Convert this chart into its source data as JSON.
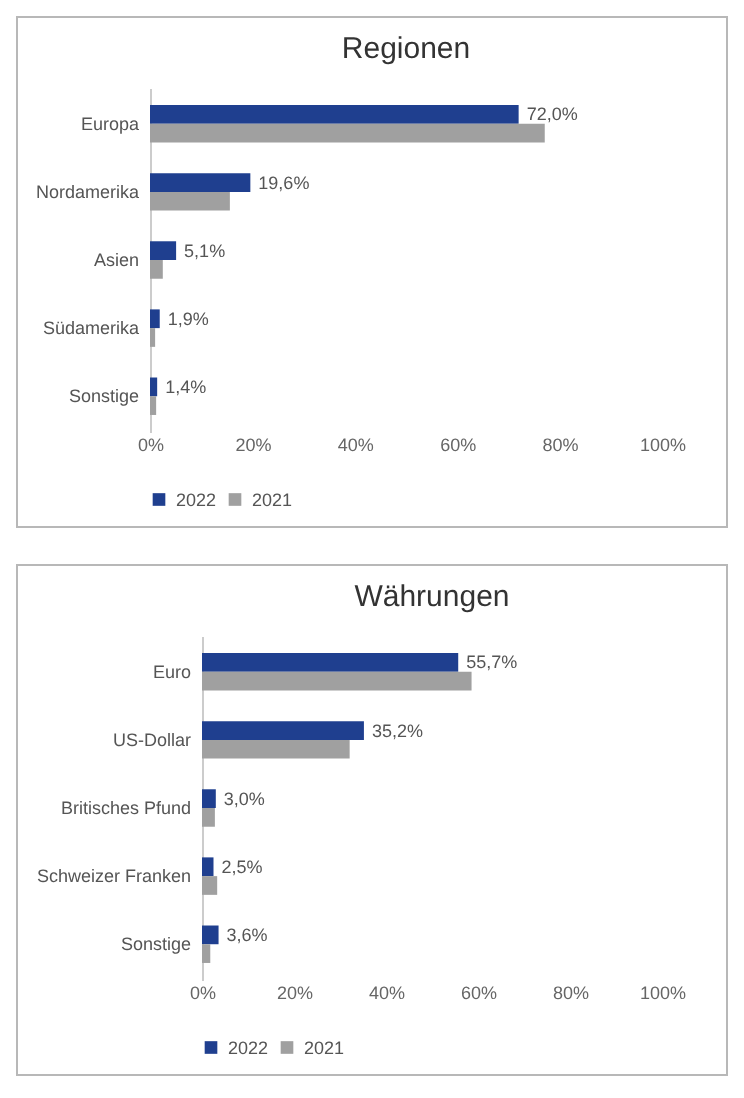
{
  "chart_data": [
    {
      "type": "bar",
      "title": "Regionen",
      "orientation": "horizontal",
      "legend": "bottom",
      "categories": [
        "Europa",
        "Nordamerika",
        "Asien",
        "Südamerika",
        "Sonstige"
      ],
      "series": [
        {
          "name": "2022",
          "color": "#1f3f8f",
          "values": [
            72.0,
            19.6,
            5.1,
            1.9,
            1.4
          ],
          "value_labels": [
            "72,0%",
            "19,6%",
            "5,1%",
            "1,9%",
            "1,4%"
          ]
        },
        {
          "name": "2021",
          "color": "#a0a0a0",
          "values": [
            77.1,
            15.6,
            2.5,
            1.0,
            1.2
          ]
        }
      ],
      "xlim": [
        0,
        100
      ],
      "xticks": [
        {
          "value": 0,
          "label": "0%"
        },
        {
          "value": 20,
          "label": "20%"
        },
        {
          "value": 40,
          "label": "40%"
        },
        {
          "value": 60,
          "label": "60%"
        },
        {
          "value": 80,
          "label": "80%"
        },
        {
          "value": 100,
          "label": "100%"
        }
      ]
    },
    {
      "type": "bar",
      "title": "Währungen",
      "orientation": "horizontal",
      "legend": "bottom",
      "categories": [
        "Euro",
        "US-Dollar",
        "Britisches Pfund",
        "Schweizer Franken",
        "Sonstige"
      ],
      "series": [
        {
          "name": "2022",
          "color": "#1f3f8f",
          "values": [
            55.7,
            35.2,
            3.0,
            2.5,
            3.6
          ],
          "value_labels": [
            "55,7%",
            "35,2%",
            "3,0%",
            "2,5%",
            "3,6%"
          ]
        },
        {
          "name": "2021",
          "color": "#a0a0a0",
          "values": [
            58.6,
            32.1,
            2.8,
            3.3,
            1.8
          ]
        }
      ],
      "xlim": [
        0,
        100
      ],
      "xticks": [
        {
          "value": 0,
          "label": "0%"
        },
        {
          "value": 20,
          "label": "20%"
        },
        {
          "value": 40,
          "label": "40%"
        },
        {
          "value": 60,
          "label": "60%"
        },
        {
          "value": 80,
          "label": "80%"
        },
        {
          "value": 100,
          "label": "100%"
        }
      ]
    }
  ]
}
